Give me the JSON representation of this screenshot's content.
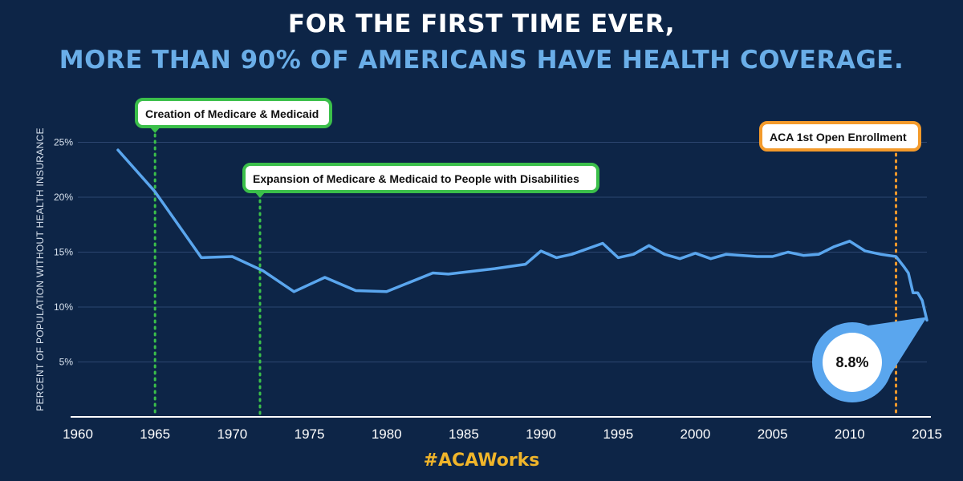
{
  "header": {
    "title_line1": "FOR THE FIRST TIME EVER,",
    "title_line2": "MORE THAN 90% OF AMERICANS HAVE HEALTH COVERAGE."
  },
  "footer": {
    "hashtag": "#ACAWorks"
  },
  "colors": {
    "background": "#0d2547",
    "line": "#5aa6ee",
    "medicare_marker": "#3bbf4a",
    "aca_marker": "#f39a2b",
    "hashtag": "#f0b52a",
    "gridline": "#2c4670"
  },
  "chart_data": {
    "type": "line",
    "title": "",
    "ylabel": "PERCENT OF POPULATION WITHOUT HEALTH INSURANCE",
    "xlabel": "",
    "xlim": [
      1960,
      2015
    ],
    "ylim": [
      0,
      25
    ],
    "grid": true,
    "x_ticks": [
      1960,
      1965,
      1970,
      1975,
      1980,
      1985,
      1990,
      1995,
      2000,
      2005,
      2010,
      2015
    ],
    "x_tick_labels": [
      "1960",
      "1965",
      "1970",
      "1975",
      "1980",
      "1985",
      "1990",
      "1995",
      "2000",
      "2005",
      "2010",
      "2015"
    ],
    "y_ticks": [
      5,
      10,
      15,
      20,
      25
    ],
    "y_tick_labels": [
      "5%",
      "10%",
      "15%",
      "20%",
      "25%"
    ],
    "series": [
      {
        "name": "",
        "x": [
          1962.6,
          1965,
          1968,
          1970,
          1972,
          1974,
          1976,
          1978,
          1980,
          1983,
          1984,
          1987,
          1989,
          1990,
          1991,
          1992,
          1994,
          1995,
          1996,
          1997,
          1998,
          1999,
          2000,
          2001,
          2002,
          2003,
          2004,
          2005,
          2006,
          2007,
          2008,
          2009,
          2010,
          2011,
          2012,
          2013,
          2013.5,
          2013.8,
          2014.1,
          2014.4,
          2014.7,
          2015
        ],
        "values": [
          24.3,
          20.5,
          14.5,
          14.6,
          13.3,
          11.4,
          12.7,
          11.5,
          11.4,
          13.1,
          13.0,
          13.5,
          13.9,
          15.1,
          14.5,
          14.8,
          15.8,
          14.5,
          14.8,
          15.6,
          14.8,
          14.4,
          14.9,
          14.4,
          14.8,
          14.7,
          14.6,
          14.6,
          15.0,
          14.7,
          14.8,
          15.5,
          16.0,
          15.1,
          14.8,
          14.6,
          13.7,
          13.1,
          11.3,
          11.3,
          10.6,
          8.8
        ]
      }
    ],
    "annotations": [
      {
        "label": "Creation of Medicare & Medicaid",
        "x": 1965,
        "style": "green"
      },
      {
        "label": "Expansion of Medicare & Medicaid to People with Disabilities",
        "x": 1971.8,
        "style": "green"
      },
      {
        "label": "ACA 1st Open Enrollment",
        "x": 2013,
        "style": "orange"
      }
    ],
    "callout": {
      "label": "8.8%",
      "x": 2015,
      "y": 8.8
    }
  }
}
